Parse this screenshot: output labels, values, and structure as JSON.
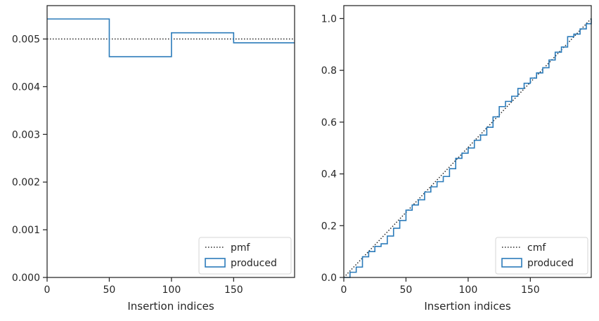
{
  "chart_data": [
    {
      "type": "step",
      "xlabel": "Insertion indices",
      "ylabel": "",
      "xlim": [
        0,
        199
      ],
      "ylim": [
        0,
        0.0057
      ],
      "x_ticks": [
        0,
        50,
        100,
        150
      ],
      "x_tick_labels": [
        "0",
        "50",
        "100",
        "150"
      ],
      "y_ticks": [
        0,
        0.001,
        0.002,
        0.003,
        0.004,
        0.005
      ],
      "y_tick_labels": [
        "0.000",
        "0.001",
        "0.002",
        "0.003",
        "0.004",
        "0.005"
      ],
      "legend_position": "lower-right",
      "series": [
        {
          "name": "pmf",
          "style": "dotted",
          "color": "#262626",
          "x": [
            0,
            199
          ],
          "y": [
            0.005,
            0.005
          ]
        },
        {
          "name": "produced",
          "style": "step",
          "color": "#2b7bba",
          "bin_edges": [
            0,
            50,
            100,
            150,
            199
          ],
          "values": [
            0.00542,
            0.00463,
            0.00513,
            0.00492
          ]
        }
      ]
    },
    {
      "type": "step",
      "xlabel": "Insertion indices",
      "ylabel": "",
      "xlim": [
        0,
        199
      ],
      "ylim": [
        0,
        1.05
      ],
      "x_ticks": [
        0,
        50,
        100,
        150
      ],
      "x_tick_labels": [
        "0",
        "50",
        "100",
        "150"
      ],
      "y_ticks": [
        0,
        0.2,
        0.4,
        0.6,
        0.8,
        1.0
      ],
      "y_tick_labels": [
        "0.0",
        "0.2",
        "0.4",
        "0.6",
        "0.8",
        "1.0"
      ],
      "legend_position": "lower-right",
      "series": [
        {
          "name": "cmf",
          "style": "dotted",
          "color": "#262626",
          "x": [
            0,
            199
          ],
          "y": [
            0,
            1
          ]
        },
        {
          "name": "produced",
          "style": "step",
          "color": "#2b7bba",
          "x": [
            0,
            5,
            10,
            15,
            20,
            25,
            30,
            35,
            40,
            45,
            50,
            55,
            60,
            65,
            70,
            75,
            80,
            85,
            90,
            95,
            100,
            105,
            110,
            115,
            120,
            125,
            130,
            135,
            140,
            145,
            150,
            155,
            160,
            165,
            170,
            175,
            180,
            185,
            190,
            195,
            199
          ],
          "y": [
            0,
            0.02,
            0.04,
            0.08,
            0.1,
            0.12,
            0.13,
            0.16,
            0.19,
            0.22,
            0.26,
            0.28,
            0.3,
            0.33,
            0.35,
            0.37,
            0.39,
            0.42,
            0.46,
            0.48,
            0.5,
            0.53,
            0.55,
            0.58,
            0.62,
            0.66,
            0.68,
            0.7,
            0.73,
            0.75,
            0.77,
            0.79,
            0.81,
            0.84,
            0.87,
            0.89,
            0.93,
            0.94,
            0.96,
            0.98,
            1.0
          ]
        }
      ]
    }
  ]
}
